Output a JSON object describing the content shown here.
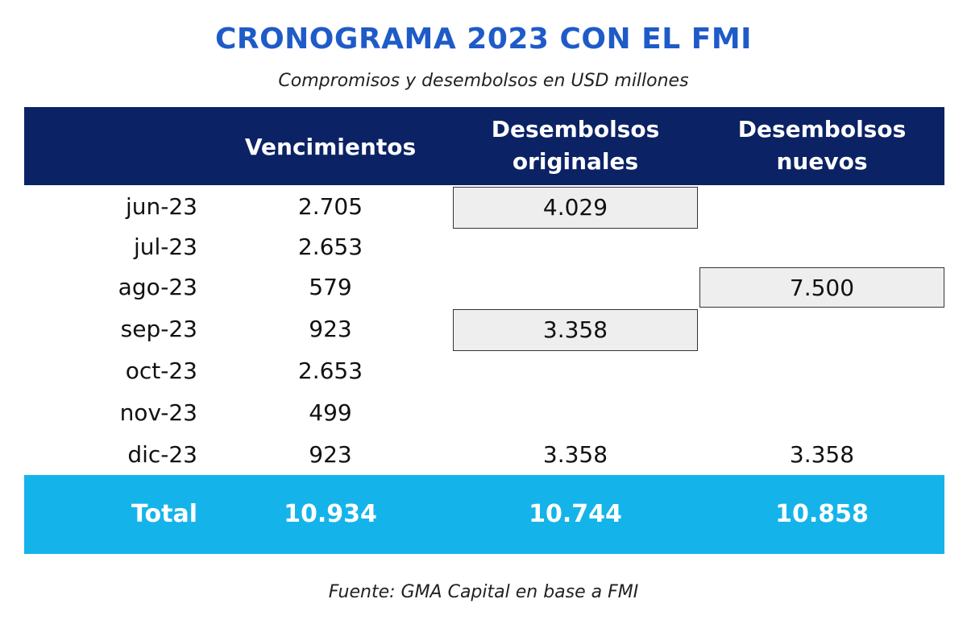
{
  "title": "CRONOGRAMA 2023 CON EL FMI",
  "subtitle": "Compromisos y desembolsos en USD millones",
  "headers": [
    "Vencimientos",
    "Desembolsos originales",
    "Desembolsos nuevos"
  ],
  "header_lines": {
    "h2a": "Desembolsos",
    "h2b": "originales",
    "h3a": "Desembolsos",
    "h3b": "nuevos"
  },
  "rows": [
    {
      "month": "jun-23",
      "venc": "2.705",
      "orig": "4.029",
      "nuevo": "",
      "orig_boxed": true,
      "nuevo_boxed": false
    },
    {
      "month": "jul-23",
      "venc": "2.653",
      "orig": "",
      "nuevo": "",
      "orig_boxed": false,
      "nuevo_boxed": false
    },
    {
      "month": "ago-23",
      "venc": "579",
      "orig": "",
      "nuevo": "7.500",
      "orig_boxed": false,
      "nuevo_boxed": true
    },
    {
      "month": "sep-23",
      "venc": "923",
      "orig": "3.358",
      "nuevo": "",
      "orig_boxed": true,
      "nuevo_boxed": false
    },
    {
      "month": "oct-23",
      "venc": "2.653",
      "orig": "",
      "nuevo": "",
      "orig_boxed": false,
      "nuevo_boxed": false
    },
    {
      "month": "nov-23",
      "venc": "499",
      "orig": "",
      "nuevo": "",
      "orig_boxed": false,
      "nuevo_boxed": false
    },
    {
      "month": "dic-23",
      "venc": "923",
      "orig": "3.358",
      "nuevo": "3.358",
      "orig_boxed": false,
      "nuevo_boxed": false
    }
  ],
  "total": {
    "label": "Total",
    "venc": "10.934",
    "orig": "10.744",
    "nuevo": "10.858"
  },
  "source": "Fuente: GMA Capital en base a FMI",
  "colors": {
    "title": "#1f5bc8",
    "header": "#0b2265",
    "total": "#14b4ea",
    "highlight_cell": "#eeeeee"
  },
  "chart_data": {
    "type": "table",
    "title": "CRONOGRAMA 2023 CON EL FMI",
    "subtitle": "Compromisos y desembolsos en USD millones",
    "columns": [
      "",
      "Vencimientos",
      "Desembolsos originales",
      "Desembolsos nuevos"
    ],
    "categories": [
      "jun-23",
      "jul-23",
      "ago-23",
      "sep-23",
      "oct-23",
      "nov-23",
      "dic-23"
    ],
    "series": [
      {
        "name": "Vencimientos",
        "values": [
          2705,
          2653,
          579,
          923,
          2653,
          499,
          923
        ]
      },
      {
        "name": "Desembolsos originales",
        "values": [
          4029,
          null,
          null,
          3358,
          null,
          null,
          3358
        ]
      },
      {
        "name": "Desembolsos nuevos",
        "values": [
          null,
          null,
          7500,
          null,
          null,
          null,
          3358
        ]
      }
    ],
    "totals": {
      "Vencimientos": 10934,
      "Desembolsos originales": 10744,
      "Desembolsos nuevos": 10858
    }
  }
}
